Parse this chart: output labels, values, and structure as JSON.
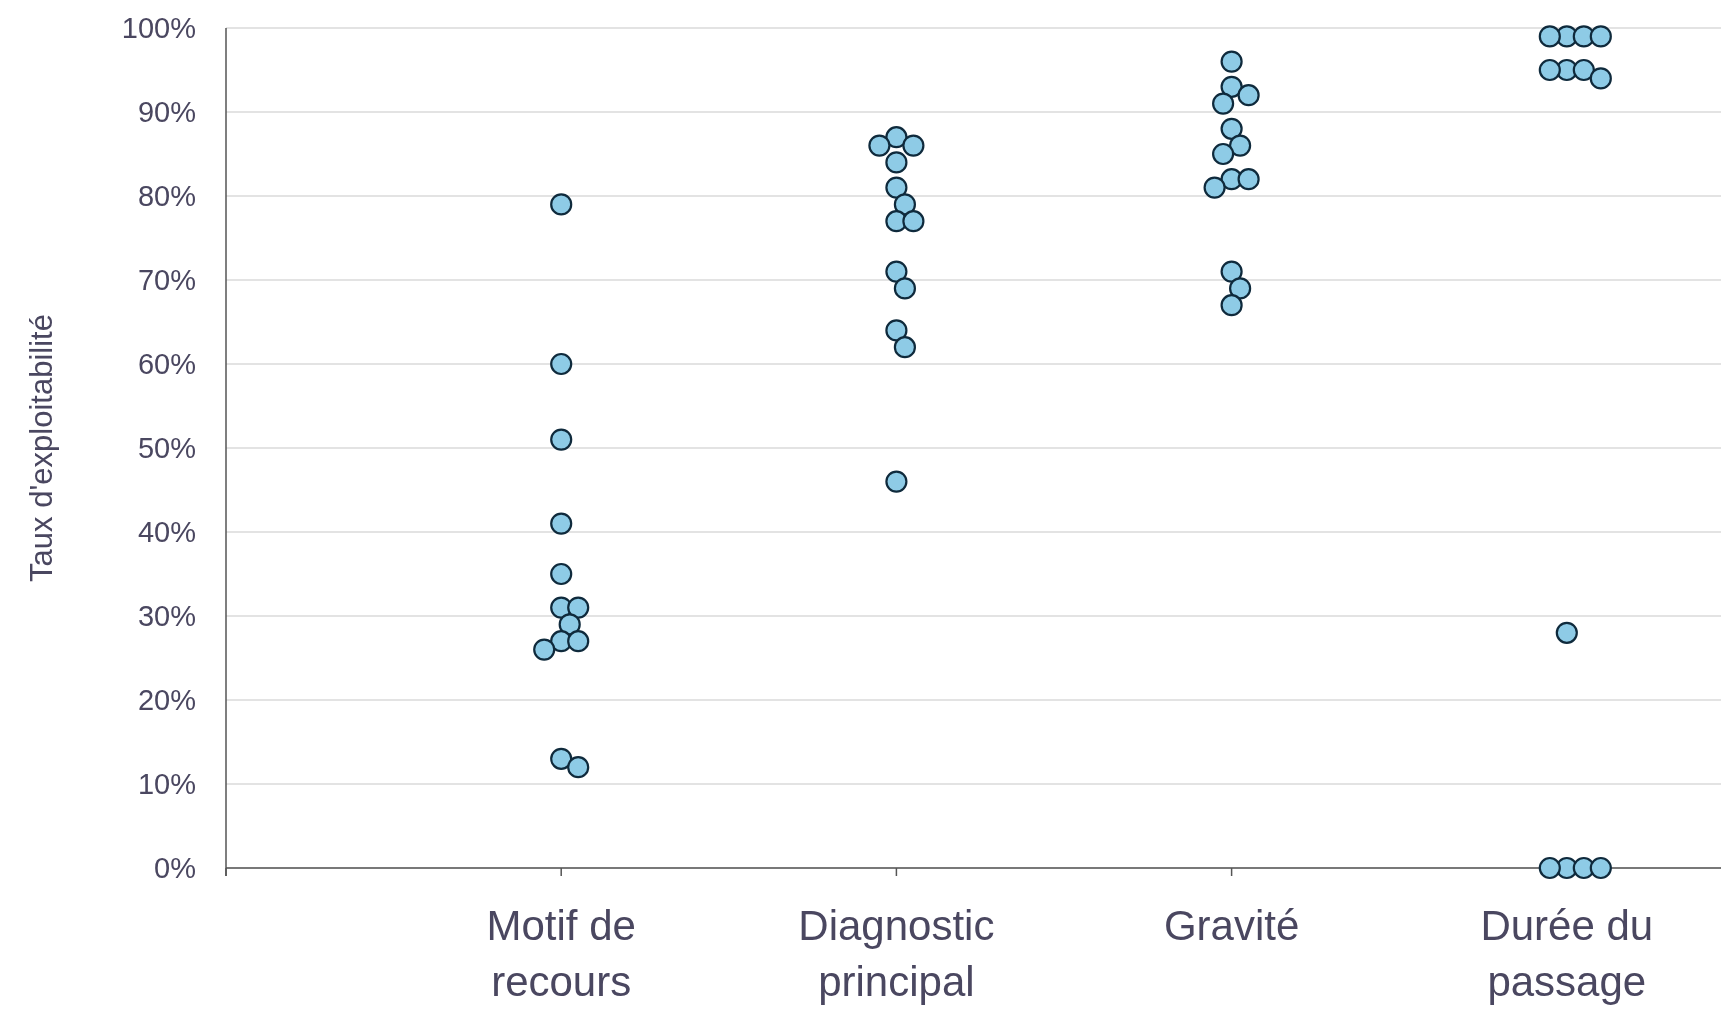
{
  "chart_data": {
    "type": "scatter",
    "ylabel": "Taux d'exploitabilité",
    "categories": [
      null,
      "Motif de recours",
      "Diagnostic principal",
      "Gravité",
      "Durée du passage"
    ],
    "ylim": [
      0,
      100
    ],
    "yticks": [
      {
        "value": 0,
        "label": "0%"
      },
      {
        "value": 10,
        "label": "10%"
      },
      {
        "value": 20,
        "label": "20%"
      },
      {
        "value": 30,
        "label": "30%"
      },
      {
        "value": 40,
        "label": "40%"
      },
      {
        "value": 50,
        "label": "50%"
      },
      {
        "value": 60,
        "label": "60%"
      },
      {
        "value": 70,
        "label": "70%"
      },
      {
        "value": 80,
        "label": "80%"
      },
      {
        "value": 90,
        "label": "90%"
      },
      {
        "value": 100,
        "label": "100%"
      }
    ],
    "grid": "y",
    "marker": "circle",
    "series": [
      {
        "color": "#8ecbe6",
        "x": [
          "Motif de recours",
          "Motif de recours",
          "Motif de recours",
          "Motif de recours",
          "Motif de recours",
          "Motif de recours",
          "Motif de recours",
          "Motif de recours",
          "Motif de recours",
          "Motif de recours",
          "Motif de recours",
          "Motif de recours",
          "Motif de recours",
          "Diagnostic principal",
          "Diagnostic principal",
          "Diagnostic principal",
          "Diagnostic principal",
          "Diagnostic principal",
          "Diagnostic principal",
          "Diagnostic principal",
          "Diagnostic principal",
          "Diagnostic principal",
          "Diagnostic principal",
          "Diagnostic principal",
          "Diagnostic principal",
          "Diagnostic principal",
          "Gravité",
          "Gravité",
          "Gravité",
          "Gravité",
          "Gravité",
          "Gravité",
          "Gravité",
          "Gravité",
          "Gravité",
          "Gravité",
          "Gravité",
          "Gravité",
          "Gravité",
          "Durée du passage",
          "Durée du passage",
          "Durée du passage",
          "Durée du passage",
          "Durée du passage",
          "Durée du passage",
          "Durée du passage",
          "Durée du passage",
          "Durée du passage",
          "Durée du passage",
          "Durée du passage",
          "Durée du passage",
          "Durée du passage"
        ],
        "values": [
          79,
          60,
          51,
          41,
          35,
          31,
          31,
          29,
          27,
          27,
          26,
          13,
          12,
          87,
          86,
          86,
          84,
          81,
          79,
          77,
          77,
          71,
          69,
          64,
          62,
          46,
          96,
          93,
          92,
          91,
          88,
          86,
          85,
          82,
          82,
          81,
          71,
          69,
          67,
          99,
          99,
          99,
          99,
          95,
          95,
          95,
          94,
          28,
          0,
          0,
          0,
          0
        ]
      }
    ]
  }
}
